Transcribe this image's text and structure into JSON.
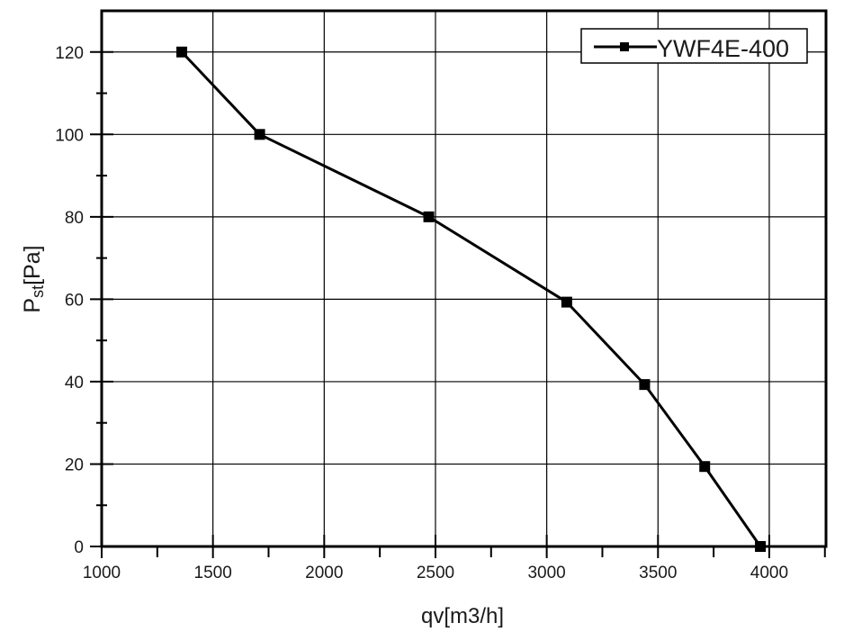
{
  "chart_data": {
    "type": "line",
    "title": "",
    "xlabel": "qv[m3/h]",
    "ylabel_main": "P",
    "ylabel_sub": "st",
    "ylabel_unit": "[Pa]",
    "xlim": [
      1000,
      4255
    ],
    "ylim": [
      0,
      130
    ],
    "xticks": [
      1000,
      1500,
      2000,
      2500,
      3000,
      3500,
      4000
    ],
    "yticks": [
      0,
      20,
      40,
      60,
      80,
      100,
      120
    ],
    "grid": true,
    "legend_placement": "top-right",
    "series": [
      {
        "name": "YWF4E-400",
        "color": "#000000",
        "marker": "square",
        "x": [
          1360,
          1710,
          2470,
          3090,
          3440,
          3710,
          3960
        ],
        "y": [
          120,
          100,
          80,
          59.3,
          39.3,
          19.4,
          0
        ]
      }
    ]
  }
}
